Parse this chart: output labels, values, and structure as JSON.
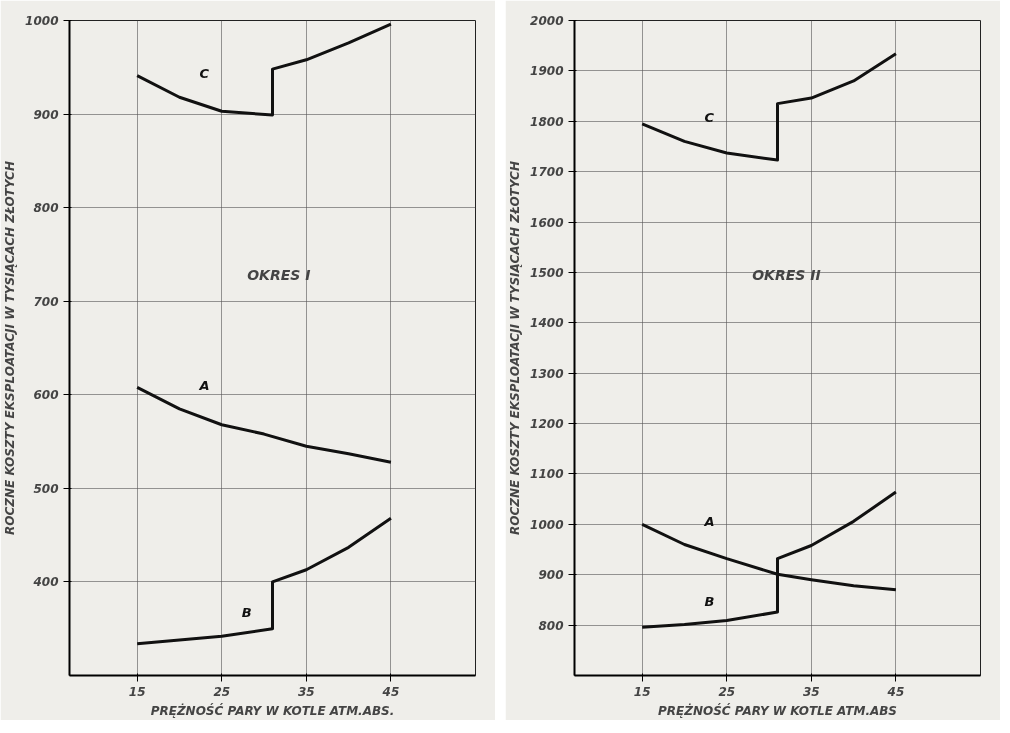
{
  "chart_data": [
    {
      "type": "line",
      "xlabel": "PRĘŻNOŚĆ PARY W KOTLE ATM.ABS.",
      "ylabel": "ROCZNE KOSZTY EKSPLOATACJI W TYSIĄCACH ZŁOTYCH",
      "annotations": [
        "OKRES I"
      ],
      "xlim": [
        7,
        55
      ],
      "ylim": [
        300,
        1000
      ],
      "xticks": [
        15,
        25,
        35,
        45
      ],
      "yticks": [
        400,
        500,
        600,
        700,
        800,
        900,
        1000
      ],
      "grid": true,
      "line_style": "solid",
      "marker": "none",
      "series": [
        {
          "name": "C",
          "color": "#111111",
          "x": [
            15,
            20,
            25,
            31,
            31,
            35,
            40,
            45
          ],
          "values": [
            941,
            918,
            903,
            899,
            948,
            958,
            976,
            996
          ]
        },
        {
          "name": "A",
          "color": "#111111",
          "x": [
            15,
            20,
            25,
            30,
            35,
            40,
            45
          ],
          "values": [
            608,
            585,
            568,
            558,
            545,
            537,
            528
          ]
        },
        {
          "name": "B",
          "color": "#111111",
          "x": [
            15,
            25,
            31,
            31,
            35,
            40,
            45
          ],
          "values": [
            334,
            342,
            350,
            400,
            413,
            437,
            468
          ]
        }
      ]
    },
    {
      "type": "line",
      "xlabel": "PRĘŻNOŚĆ PARY W KOTLE ATM.ABS",
      "ylabel": "ROCZNE KOSZTY EKSPLOATACJI W TYSIĄCACH ZŁOTYCH",
      "annotations": [
        "OKRES II"
      ],
      "xlim": [
        7,
        55
      ],
      "ylim": [
        700,
        2000
      ],
      "xticks": [
        15,
        25,
        35,
        45
      ],
      "yticks": [
        800,
        900,
        1000,
        1100,
        1200,
        1300,
        1400,
        1500,
        1600,
        1700,
        1800,
        1900,
        2000
      ],
      "grid": true,
      "line_style": "solid",
      "marker": "none",
      "series": [
        {
          "name": "C",
          "color": "#111111",
          "x": [
            15,
            20,
            25,
            31,
            31,
            35,
            40,
            45
          ],
          "values": [
            1795,
            1760,
            1737,
            1723,
            1835,
            1846,
            1880,
            1934
          ]
        },
        {
          "name": "A",
          "color": "#111111",
          "x": [
            15,
            20,
            25,
            31,
            35,
            40,
            45
          ],
          "values": [
            1000,
            960,
            932,
            901,
            890,
            878,
            870
          ]
        },
        {
          "name": "B",
          "color": "#111111",
          "x": [
            15,
            20,
            25,
            31,
            31,
            35,
            40,
            45
          ],
          "values": [
            796,
            801,
            809,
            826,
            932,
            958,
            1006,
            1064
          ]
        }
      ]
    }
  ]
}
